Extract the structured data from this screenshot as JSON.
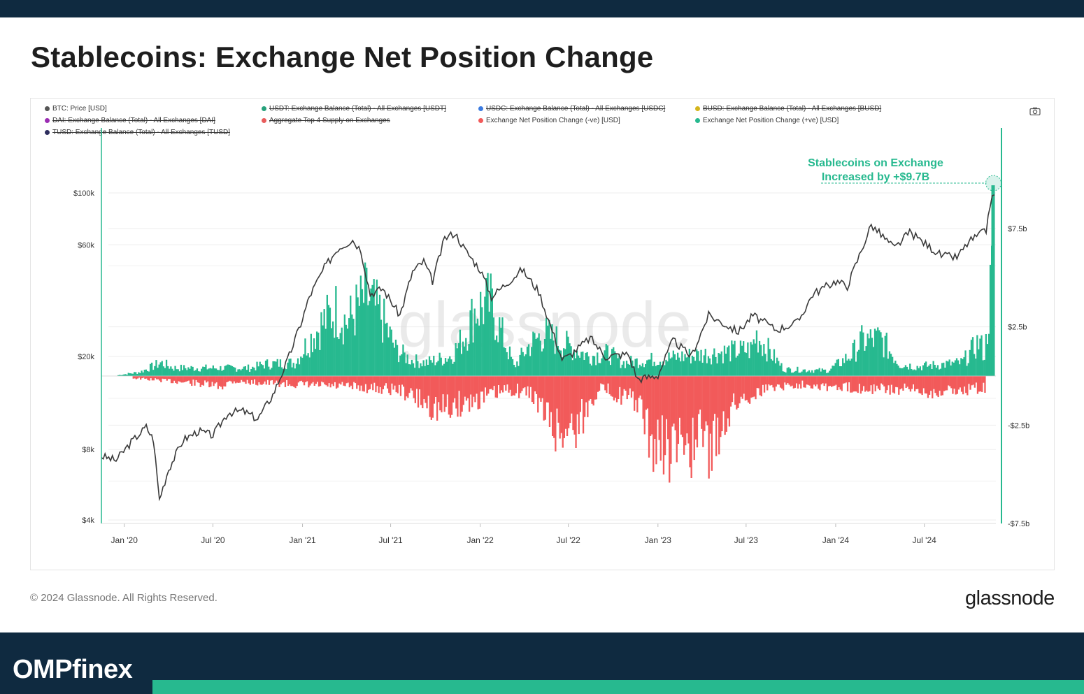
{
  "header": {
    "title": "Stablecoins: Exchange Net Position Change"
  },
  "legend": [
    {
      "label": "BTC: Price [USD]",
      "color": "#555555",
      "active": true
    },
    {
      "label": "USDT: Exchange Balance (Total) - All Exchanges [USDT]",
      "color": "#26a17b",
      "active": false
    },
    {
      "label": "USDC: Exchange Balance (Total) - All Exchanges [USDC]",
      "color": "#3b7be0",
      "active": false
    },
    {
      "label": "BUSD: Exchange Balance (Total) - All Exchanges [BUSD]",
      "color": "#d4b51c",
      "active": false
    },
    {
      "label": "DAI: Exchange Balance (Total) - All Exchanges [DAI]",
      "color": "#9b2db3",
      "active": false
    },
    {
      "label": "Aggregate Top 4 Supply on Exchanges",
      "color": "#e85c5c",
      "active": false
    },
    {
      "label": "Exchange Net Position Change (-ve) [USD]",
      "color": "#f25a5a",
      "active": true
    },
    {
      "label": "Exchange Net Position Change (+ve) [USD]",
      "color": "#27b98f",
      "active": true
    },
    {
      "label": "TUSD: Exchange Balance (Total) - All Exchanges [TUSD]",
      "color": "#2e2e5e",
      "active": false
    }
  ],
  "colors": {
    "positive": "#27b98f",
    "negative": "#f25a5a",
    "price": "#3a3a3a",
    "brand": "#0f2a40",
    "accent": "#27b98f"
  },
  "watermark": "glassnode",
  "annotation": {
    "line1": "Stablecoins on Exchange",
    "line2": "Increased by +$9.7B"
  },
  "chart_data": {
    "type": "line",
    "title": "Stablecoins: Exchange Net Position Change",
    "x_ticks": [
      "Jan '20",
      "Jul '20",
      "Jan '21",
      "Jul '21",
      "Jan '22",
      "Jul '22",
      "Jan '23",
      "Jul '23",
      "Jan '24",
      "Jul '24"
    ],
    "x_range": [
      "2019-11-15",
      "2024-11-25"
    ],
    "left_axis": {
      "label": "BTC Price",
      "scale": "log",
      "ticks": [
        "$4k",
        "$8k",
        "$20k",
        "$60k",
        "$100k"
      ],
      "tick_values": [
        4000,
        8000,
        20000,
        60000,
        100000
      ]
    },
    "right_axis": {
      "label": "Net Position Change",
      "ticks": [
        "$7.5b",
        "$2.5b",
        "-$2.5b",
        "-$7.5b"
      ],
      "tick_values": [
        7.5,
        2.5,
        -2.5,
        -7.5
      ],
      "range": [
        -7.5,
        9.0
      ]
    },
    "series": [
      {
        "name": "BTC: Price [USD]",
        "axis": "left",
        "points": [
          [
            "2019-11-15",
            7500
          ],
          [
            "2019-12-15",
            7200
          ],
          [
            "2020-01-15",
            8600
          ],
          [
            "2020-02-15",
            10000
          ],
          [
            "2020-03-01",
            8800
          ],
          [
            "2020-03-13",
            4900
          ],
          [
            "2020-04-01",
            6600
          ],
          [
            "2020-05-01",
            8800
          ],
          [
            "2020-06-01",
            9600
          ],
          [
            "2020-07-01",
            9200
          ],
          [
            "2020-08-01",
            11500
          ],
          [
            "2020-09-01",
            11700
          ],
          [
            "2020-10-01",
            10800
          ],
          [
            "2020-11-01",
            13700
          ],
          [
            "2020-12-01",
            19200
          ],
          [
            "2021-01-01",
            29000
          ],
          [
            "2021-01-15",
            36000
          ],
          [
            "2021-02-15",
            48000
          ],
          [
            "2021-03-15",
            58000
          ],
          [
            "2021-04-14",
            63000
          ],
          [
            "2021-05-01",
            57000
          ],
          [
            "2021-05-20",
            37000
          ],
          [
            "2021-06-15",
            39000
          ],
          [
            "2021-07-20",
            30000
          ],
          [
            "2021-08-15",
            46000
          ],
          [
            "2021-09-07",
            51000
          ],
          [
            "2021-09-25",
            42000
          ],
          [
            "2021-10-20",
            64000
          ],
          [
            "2021-11-10",
            67500
          ],
          [
            "2021-12-01",
            57000
          ],
          [
            "2022-01-01",
            47000
          ],
          [
            "2022-01-24",
            36000
          ],
          [
            "2022-03-28",
            47000
          ],
          [
            "2022-05-01",
            38000
          ],
          [
            "2022-06-18",
            19500
          ],
          [
            "2022-07-01",
            20000
          ],
          [
            "2022-08-15",
            24000
          ],
          [
            "2022-09-15",
            20000
          ],
          [
            "2022-11-01",
            20500
          ],
          [
            "2022-11-20",
            16000
          ],
          [
            "2023-01-01",
            16600
          ],
          [
            "2023-02-01",
            23500
          ],
          [
            "2023-03-10",
            20000
          ],
          [
            "2023-04-15",
            30000
          ],
          [
            "2023-06-15",
            25500
          ],
          [
            "2023-07-15",
            30000
          ],
          [
            "2023-09-01",
            26000
          ],
          [
            "2023-10-15",
            28000
          ],
          [
            "2023-11-15",
            37000
          ],
          [
            "2024-01-01",
            42000
          ],
          [
            "2024-01-25",
            40000
          ],
          [
            "2024-03-14",
            73000
          ],
          [
            "2024-05-01",
            58000
          ],
          [
            "2024-06-01",
            68000
          ],
          [
            "2024-08-05",
            54000
          ],
          [
            "2024-09-06",
            53000
          ],
          [
            "2024-10-01",
            62000
          ],
          [
            "2024-11-05",
            69000
          ],
          [
            "2024-11-13",
            90000
          ],
          [
            "2024-11-22",
            98000
          ]
        ]
      },
      {
        "name": "Exchange Net Position Change (+ve) [USD]",
        "axis": "right",
        "points": [
          [
            "2019-12-15",
            0.05
          ],
          [
            "2020-02-01",
            0.3
          ],
          [
            "2020-03-15",
            1.0
          ],
          [
            "2020-04-10",
            0.6
          ],
          [
            "2020-09-15",
            0.6
          ],
          [
            "2020-10-15",
            0.9
          ],
          [
            "2020-12-15",
            1.0
          ],
          [
            "2021-01-10",
            2.5
          ],
          [
            "2021-02-10",
            4.0
          ],
          [
            "2021-03-10",
            5.0
          ],
          [
            "2021-04-01",
            4.0
          ],
          [
            "2021-05-10",
            6.0
          ],
          [
            "2021-06-10",
            4.5
          ],
          [
            "2021-07-10",
            2.0
          ],
          [
            "2021-08-10",
            1.2
          ],
          [
            "2021-09-10",
            1.0
          ],
          [
            "2021-11-01",
            1.5
          ],
          [
            "2021-12-01",
            3.2
          ],
          [
            "2021-12-20",
            5.0
          ],
          [
            "2022-01-20",
            5.5
          ],
          [
            "2022-03-10",
            0.7
          ],
          [
            "2022-04-10",
            2.3
          ],
          [
            "2022-05-10",
            3.2
          ],
          [
            "2022-08-10",
            1.5
          ],
          [
            "2022-09-20",
            1.7
          ],
          [
            "2022-10-20",
            1.0
          ],
          [
            "2023-07-10",
            2.0
          ],
          [
            "2023-07-20",
            3.1
          ],
          [
            "2023-09-15",
            0.5
          ],
          [
            "2023-12-15",
            0.4
          ],
          [
            "2024-02-01",
            1.6
          ],
          [
            "2024-02-20",
            2.6
          ],
          [
            "2024-04-01",
            2.8
          ],
          [
            "2024-05-10",
            0.9
          ],
          [
            "2024-06-15",
            0.7
          ],
          [
            "2024-09-15",
            1.0
          ],
          [
            "2024-10-20",
            2.6
          ],
          [
            "2024-11-01",
            1.6
          ],
          [
            "2024-11-20",
            9.7
          ]
        ]
      },
      {
        "name": "Exchange Net Position Change (-ve) [USD]",
        "axis": "right",
        "points": [
          [
            "2020-01-15",
            -0.15
          ],
          [
            "2020-05-15",
            -0.5
          ],
          [
            "2020-07-15",
            -0.8
          ],
          [
            "2020-08-05",
            -0.4
          ],
          [
            "2021-07-15",
            -1.0
          ],
          [
            "2021-10-05",
            -2.5
          ],
          [
            "2021-10-15",
            -2.5
          ],
          [
            "2022-03-01",
            -1.0
          ],
          [
            "2022-04-15",
            -1.3
          ],
          [
            "2022-05-15",
            -3.0
          ],
          [
            "2022-06-10",
            -4.3
          ],
          [
            "2022-06-25",
            -4.0
          ],
          [
            "2022-07-20",
            -3.7
          ],
          [
            "2022-09-01",
            -0.8
          ],
          [
            "2022-11-05",
            -1.8
          ],
          [
            "2022-11-20",
            -2.0
          ],
          [
            "2022-12-01",
            -3.3
          ],
          [
            "2022-12-20",
            -5.4
          ],
          [
            "2023-01-15",
            -5.2
          ],
          [
            "2023-02-01",
            -5.9
          ],
          [
            "2023-03-01",
            -4.5
          ],
          [
            "2023-03-15",
            -6.0
          ],
          [
            "2023-04-01",
            -4.0
          ],
          [
            "2023-04-20",
            -5.8
          ],
          [
            "2023-05-15",
            -3.3
          ],
          [
            "2023-06-15",
            -1.8
          ],
          [
            "2023-08-20",
            -0.8
          ],
          [
            "2023-10-01",
            -0.7
          ],
          [
            "2023-11-01",
            -0.6
          ],
          [
            "2024-01-05",
            -0.9
          ],
          [
            "2024-03-01",
            -0.9
          ],
          [
            "2024-05-25",
            -1.1
          ],
          [
            "2024-07-20",
            -1.2
          ],
          [
            "2024-11-01",
            -0.9
          ]
        ]
      }
    ],
    "legend_position": "top",
    "grid": true
  },
  "footer": {
    "copyright": "© 2024 Glassnode. All Rights Reserved.",
    "logo_text": "glassnode"
  },
  "brand": {
    "name_prefix": "OMPf",
    "name_i": "i",
    "name_suffix": "nex"
  }
}
